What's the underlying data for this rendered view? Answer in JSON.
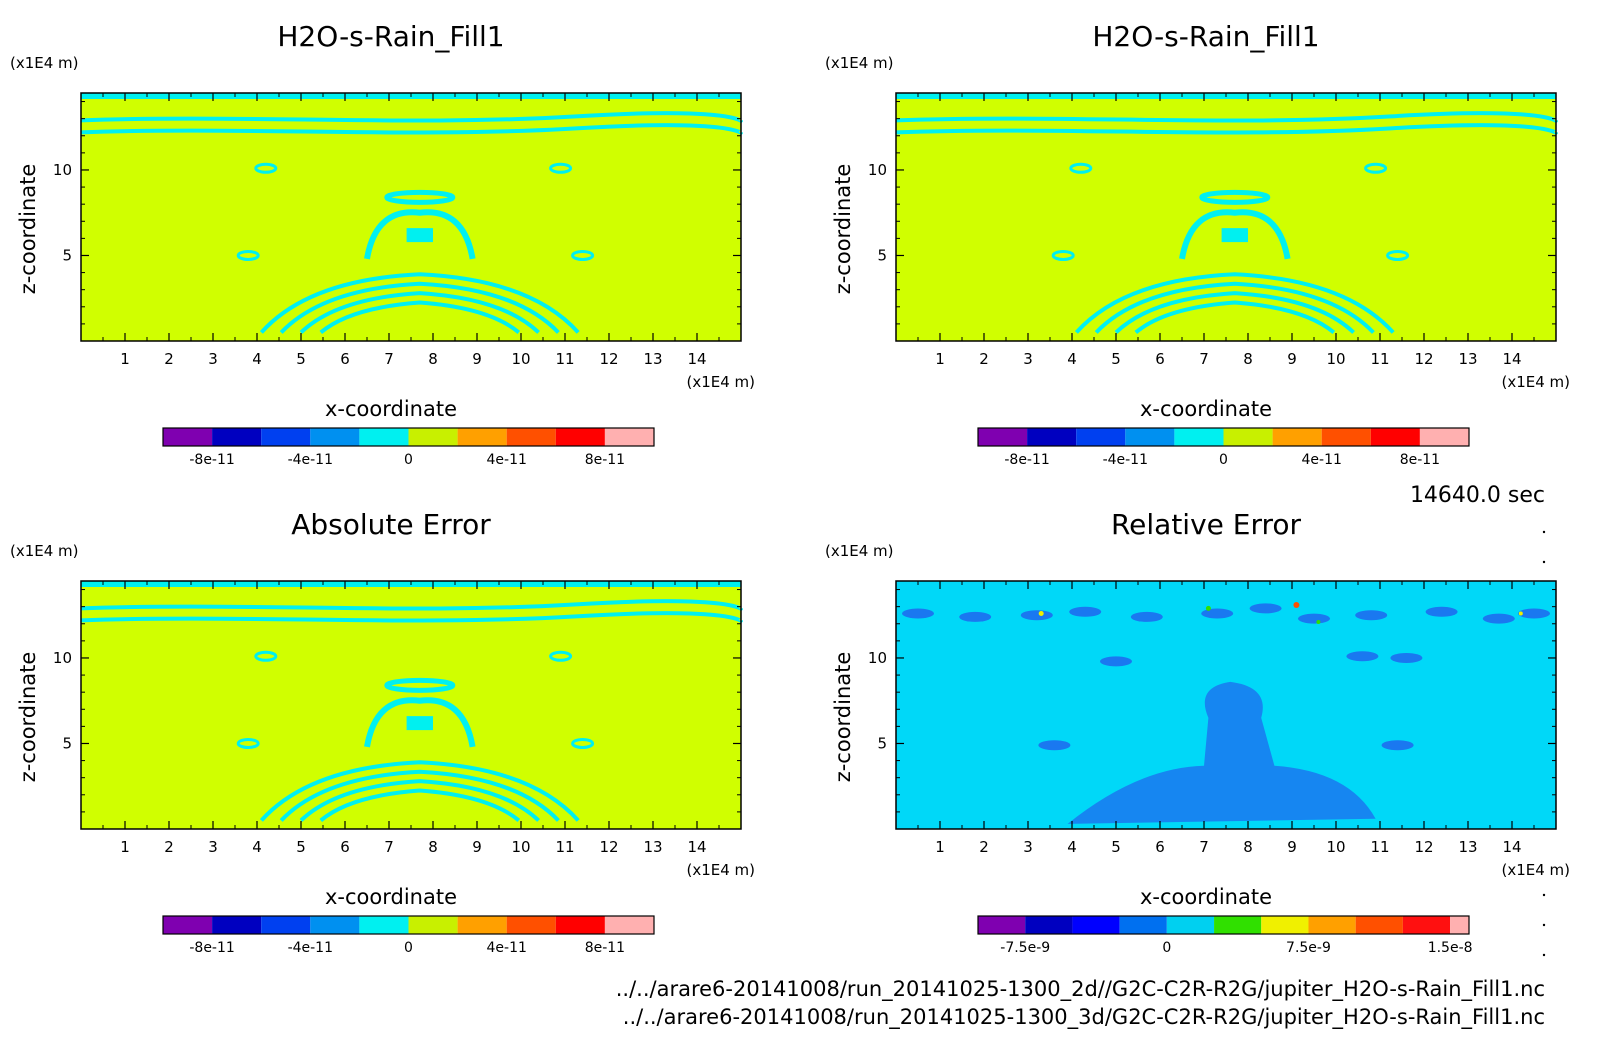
{
  "chart_data": [
    {
      "type": "heatmap",
      "title": "H2O-s-Rain_Fill1",
      "xlabel": "x-coordinate",
      "ylabel": "z-coordinate",
      "x_unit": "(x1E4 m)",
      "y_unit": "(x1E4 m)",
      "xlim": [
        0,
        15
      ],
      "ylim": [
        0,
        14.5
      ],
      "x_ticks": [
        "1",
        "2",
        "3",
        "4",
        "5",
        "6",
        "7",
        "8",
        "9",
        "10",
        "11",
        "12",
        "13",
        "14"
      ],
      "y_ticks": [
        "5",
        "10"
      ],
      "background_value": 0,
      "colorbar": {
        "levels": [
          -1e-10,
          -8e-11,
          -6e-11,
          -4e-11,
          -2e-11,
          0,
          2e-11,
          4e-11,
          6e-11,
          8e-11,
          1e-10
        ],
        "labels": [
          "-8e-11",
          "-4e-11",
          "0",
          "4e-11",
          "8e-11"
        ],
        "colors": [
          "#7f00b0",
          "#0000c0",
          "#0040f0",
          "#0090f0",
          "#00f0f0",
          "#c8f000",
          "#ffa000",
          "#ff5000",
          "#ff0000",
          "#ffb0b0"
        ]
      }
    },
    {
      "type": "heatmap",
      "title": "H2O-s-Rain_Fill1",
      "xlabel": "x-coordinate",
      "ylabel": "z-coordinate",
      "x_unit": "(x1E4 m)",
      "y_unit": "(x1E4 m)",
      "xlim": [
        0,
        15
      ],
      "ylim": [
        0,
        14.5
      ],
      "x_ticks": [
        "1",
        "2",
        "3",
        "4",
        "5",
        "6",
        "7",
        "8",
        "9",
        "10",
        "11",
        "12",
        "13",
        "14"
      ],
      "y_ticks": [
        "5",
        "10"
      ],
      "background_value": 0,
      "colorbar": {
        "levels": [
          -1e-10,
          -8e-11,
          -6e-11,
          -4e-11,
          -2e-11,
          0,
          2e-11,
          4e-11,
          6e-11,
          8e-11,
          1e-10
        ],
        "labels": [
          "-8e-11",
          "-4e-11",
          "0",
          "4e-11",
          "8e-11"
        ],
        "colors": [
          "#7f00b0",
          "#0000c0",
          "#0040f0",
          "#0090f0",
          "#00f0f0",
          "#c8f000",
          "#ffa000",
          "#ff5000",
          "#ff0000",
          "#ffb0b0"
        ]
      }
    },
    {
      "type": "heatmap",
      "title": "Absolute Error",
      "xlabel": "x-coordinate",
      "ylabel": "z-coordinate",
      "x_unit": "(x1E4 m)",
      "y_unit": "(x1E4 m)",
      "xlim": [
        0,
        15
      ],
      "ylim": [
        0,
        14.5
      ],
      "x_ticks": [
        "1",
        "2",
        "3",
        "4",
        "5",
        "6",
        "7",
        "8",
        "9",
        "10",
        "11",
        "12",
        "13",
        "14"
      ],
      "y_ticks": [
        "5",
        "10"
      ],
      "background_value": 0,
      "colorbar": {
        "levels": [
          -1e-10,
          -8e-11,
          -6e-11,
          -4e-11,
          -2e-11,
          0,
          2e-11,
          4e-11,
          6e-11,
          8e-11,
          1e-10
        ],
        "labels": [
          "-8e-11",
          "-4e-11",
          "0",
          "4e-11",
          "8e-11"
        ],
        "colors": [
          "#7f00b0",
          "#0000c0",
          "#0040f0",
          "#0090f0",
          "#00f0f0",
          "#c8f000",
          "#ffa000",
          "#ff5000",
          "#ff0000",
          "#ffb0b0"
        ]
      }
    },
    {
      "type": "heatmap",
      "title": "Relative Error",
      "xlabel": "x-coordinate",
      "ylabel": "z-coordinate",
      "x_unit": "(x1E4 m)",
      "y_unit": "(x1E4 m)",
      "xlim": [
        0,
        15
      ],
      "ylim": [
        0,
        14.5
      ],
      "x_ticks": [
        "1",
        "2",
        "3",
        "4",
        "5",
        "6",
        "7",
        "8",
        "9",
        "10",
        "11",
        "12",
        "13",
        "14"
      ],
      "y_ticks": [
        "5",
        "10"
      ],
      "background_value": 0,
      "colorbar": {
        "levels": [
          -1e-08,
          -7.5e-09,
          -5e-09,
          -2.5e-09,
          0,
          2.5e-09,
          5e-09,
          7.5e-09,
          1e-08,
          1.25e-08,
          1.5e-08,
          1.6e-08
        ],
        "labels": [
          "-7.5e-9",
          "0",
          "7.5e-9",
          "1.5e-8"
        ],
        "colors": [
          "#7f00b0",
          "#0000c0",
          "#0000ff",
          "#0070f0",
          "#00d0f0",
          "#30e000",
          "#f0f000",
          "#ffa000",
          "#ff5000",
          "#ff1010",
          "#ffb0b0"
        ]
      }
    }
  ],
  "time_label": "14640.0 sec",
  "files": [
    "../../arare6-20141008/run_20141025-1300_2d//G2C-C2R-R2G/jupiter_H2O-s-Rain_Fill1.nc",
    "../../arare6-20141008/run_20141025-1300_3d/G2C-C2R-R2G/jupiter_H2O-s-Rain_Fill1.nc"
  ],
  "colors": {
    "field_background": "#d0ff00",
    "contour_band": "#00f0f0",
    "relerr_background": "#00d8f8",
    "relerr_band": "#1a78f0"
  }
}
